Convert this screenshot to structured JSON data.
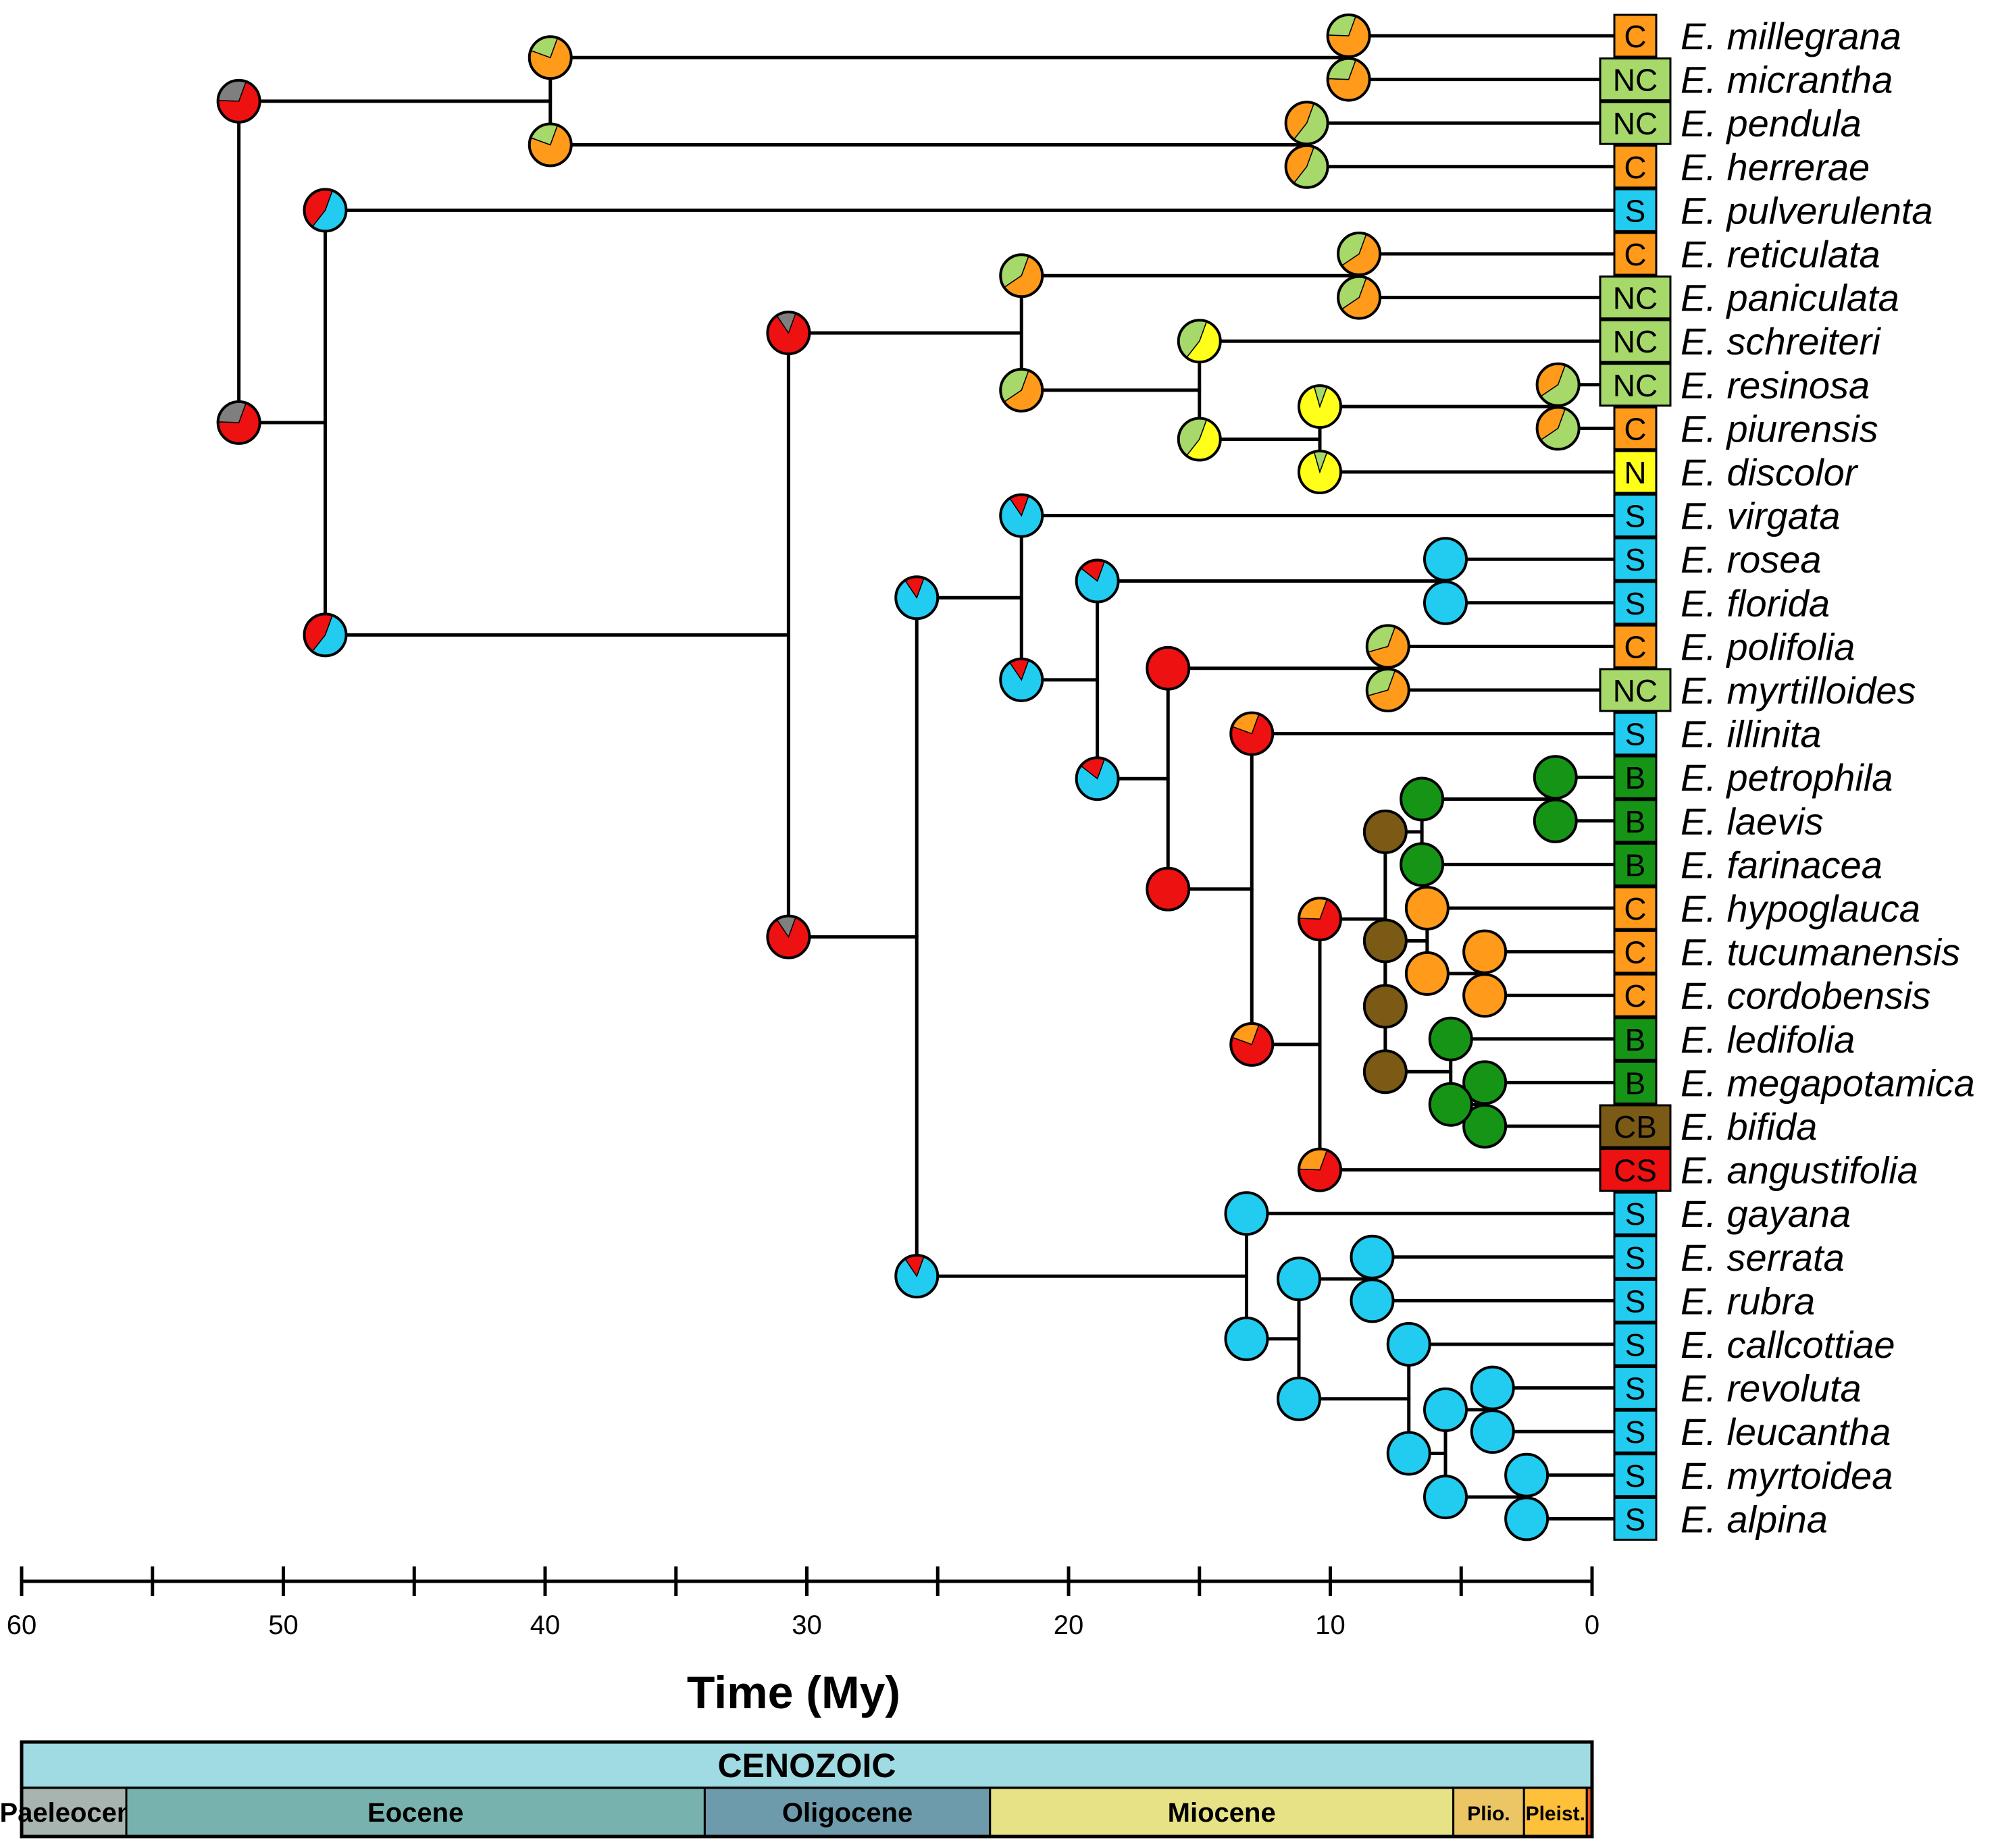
{
  "colors": {
    "S": "#22ccf0",
    "C": "#ff9a1a",
    "NC": "#a6d86a",
    "N": "#ffff1a",
    "B": "#169416",
    "CB": "#7a5a14",
    "CS": "#ee1111",
    "unknown": "#7f7f7f"
  },
  "species": [
    {
      "name": "E. millegrana",
      "state": "C"
    },
    {
      "name": "E. micrantha",
      "state": "NC"
    },
    {
      "name": "E. pendula",
      "state": "NC"
    },
    {
      "name": "E. herrerae",
      "state": "C"
    },
    {
      "name": "E. pulverulenta",
      "state": "S"
    },
    {
      "name": "E. reticulata",
      "state": "C"
    },
    {
      "name": "E. paniculata",
      "state": "NC"
    },
    {
      "name": "E. schreiteri",
      "state": "NC"
    },
    {
      "name": "E. resinosa",
      "state": "NC"
    },
    {
      "name": "E. piurensis",
      "state": "C"
    },
    {
      "name": "E. discolor",
      "state": "N"
    },
    {
      "name": "E. virgata",
      "state": "S"
    },
    {
      "name": "E. rosea",
      "state": "S"
    },
    {
      "name": "E. florida",
      "state": "S"
    },
    {
      "name": "E. polifolia",
      "state": "C"
    },
    {
      "name": "E. myrtilloides",
      "state": "NC"
    },
    {
      "name": "E. illinita",
      "state": "S"
    },
    {
      "name": "E. petrophila",
      "state": "B"
    },
    {
      "name": "E. laevis",
      "state": "B"
    },
    {
      "name": "E. farinacea",
      "state": "B"
    },
    {
      "name": "E. hypoglauca",
      "state": "C"
    },
    {
      "name": "E. tucumanensis",
      "state": "C"
    },
    {
      "name": "E. cordobensis",
      "state": "C"
    },
    {
      "name": "E. ledifolia",
      "state": "B"
    },
    {
      "name": "E. megapotamica",
      "state": "B"
    },
    {
      "name": "E. bifida",
      "state": "CB"
    },
    {
      "name": "E. angustifolia",
      "state": "CS"
    },
    {
      "name": "E. gayana",
      "state": "S"
    },
    {
      "name": "E. serrata",
      "state": "S"
    },
    {
      "name": "E. rubra",
      "state": "S"
    },
    {
      "name": "E. callcottiae",
      "state": "S"
    },
    {
      "name": "E. revoluta",
      "state": "S"
    },
    {
      "name": "E. leucantha",
      "state": "S"
    },
    {
      "name": "E. myrtoidea",
      "state": "S"
    },
    {
      "name": "E. alpina",
      "state": "S"
    }
  ],
  "nodes": [
    {
      "id": "n_mill_micr",
      "age": 9.3,
      "children": [
        0,
        1
      ],
      "pie": [
        [
          "C",
          0.7
        ],
        [
          "NC",
          0.3
        ]
      ]
    },
    {
      "id": "n_pend_herr",
      "age": 10.9,
      "children": [
        2,
        3
      ],
      "pie": [
        [
          "NC",
          0.55
        ],
        [
          "C",
          0.45
        ]
      ]
    },
    {
      "id": "n_4sp",
      "age": 39.8,
      "children": [
        "n_mill_micr",
        "n_pend_herr"
      ],
      "pie": [
        [
          "C",
          0.75
        ],
        [
          "NC",
          0.25
        ]
      ]
    },
    {
      "id": "n_ret_pan",
      "age": 8.9,
      "children": [
        5,
        6
      ],
      "pie": [
        [
          "C",
          0.6
        ],
        [
          "NC",
          0.4
        ]
      ]
    },
    {
      "id": "n_res_piu",
      "age": 1.3,
      "children": [
        8,
        9
      ],
      "pie": [
        [
          "NC",
          0.6
        ],
        [
          "C",
          0.4
        ]
      ]
    },
    {
      "id": "n_rpd",
      "age": 10.4,
      "children": [
        "n_res_piu",
        10
      ],
      "pie": [
        [
          "N",
          0.9
        ],
        [
          "NC",
          0.1
        ]
      ]
    },
    {
      "id": "n_srpd",
      "age": 15.0,
      "children": [
        7,
        "n_rpd"
      ],
      "pie": [
        [
          "N",
          0.55
        ],
        [
          "NC",
          0.45
        ]
      ]
    },
    {
      "id": "n_yellow",
      "age": 21.8,
      "children": [
        "n_ret_pan",
        "n_srpd"
      ],
      "pie": [
        [
          "C",
          0.6
        ],
        [
          "NC",
          0.4
        ]
      ]
    },
    {
      "id": "n_ros_flo",
      "age": 5.6,
      "children": [
        12,
        13
      ],
      "pie": [
        [
          "S",
          1.0
        ]
      ]
    },
    {
      "id": "n_pol_myr",
      "age": 7.8,
      "children": [
        14,
        15
      ],
      "pie": [
        [
          "C",
          0.65
        ],
        [
          "NC",
          0.35
        ]
      ]
    },
    {
      "id": "n_pet_lae",
      "age": 1.4,
      "children": [
        17,
        18
      ],
      "pie": [
        [
          "B",
          1.0
        ]
      ]
    },
    {
      "id": "n_plf",
      "age": 6.5,
      "children": [
        "n_pet_lae",
        19
      ],
      "pie": [
        [
          "B",
          1.0
        ]
      ]
    },
    {
      "id": "n_tuc_cor",
      "age": 4.1,
      "children": [
        21,
        22
      ],
      "pie": [
        [
          "C",
          1.0
        ]
      ]
    },
    {
      "id": "n_hyp_tc",
      "age": 6.3,
      "children": [
        20,
        "n_tuc_cor"
      ],
      "pie": [
        [
          "C",
          1.0
        ]
      ]
    },
    {
      "id": "n_meg_bif",
      "age": 4.1,
      "children": [
        24,
        25
      ],
      "pie": [
        [
          "B",
          1.0
        ]
      ]
    },
    {
      "id": "n_led_mb",
      "age": 5.4,
      "children": [
        23,
        "n_meg_bif"
      ],
      "pie": [
        [
          "B",
          1.0
        ]
      ]
    },
    {
      "id": "n_cb",
      "age": 7.9,
      "children": [
        "n_hyp_tc",
        "n_led_mb"
      ],
      "pie": [
        [
          "CB",
          1.0
        ]
      ]
    },
    {
      "id": "n_bc",
      "age": 7.9,
      "children": [
        "n_plf",
        "n_cb"
      ],
      "pie": [
        [
          "CB",
          1.0
        ]
      ]
    },
    {
      "id": "n_cbs",
      "age": 10.4,
      "children": [
        "n_bc",
        26
      ],
      "pie": [
        [
          "CS",
          0.7
        ],
        [
          "C",
          0.3
        ]
      ]
    },
    {
      "id": "n_ill_cbs",
      "age": 13.0,
      "children": [
        16,
        "n_cbs"
      ],
      "pie": [
        [
          "CS",
          0.75
        ],
        [
          "C",
          0.25
        ]
      ]
    },
    {
      "id": "n_polgrp",
      "age": 16.2,
      "children": [
        "n_pol_myr",
        "n_ill_cbs"
      ],
      "pie": [
        [
          "CS",
          1.0
        ]
      ]
    },
    {
      "id": "n_rfp",
      "age": 18.9,
      "children": [
        "n_ros_flo",
        "n_polgrp"
      ],
      "pie": [
        [
          "S",
          0.8
        ],
        [
          "CS",
          0.2
        ]
      ]
    },
    {
      "id": "n_vrfp",
      "age": 21.8,
      "children": [
        11,
        "n_rfp"
      ],
      "pie": [
        [
          "S",
          0.85
        ],
        [
          "CS",
          0.15
        ]
      ]
    },
    {
      "id": "n_rub_ser",
      "age": 8.4,
      "children": [
        28,
        29
      ],
      "pie": [
        [
          "S",
          1.0
        ]
      ]
    },
    {
      "id": "n_rev_leu",
      "age": 3.8,
      "children": [
        31,
        32
      ],
      "pie": [
        [
          "S",
          1.0
        ]
      ]
    },
    {
      "id": "n_myrt_alp",
      "age": 2.5,
      "children": [
        33,
        34
      ],
      "pie": [
        [
          "S",
          1.0
        ]
      ]
    },
    {
      "id": "n_4s",
      "age": 5.6,
      "children": [
        "n_rev_leu",
        "n_myrt_alp"
      ],
      "pie": [
        [
          "S",
          1.0
        ]
      ]
    },
    {
      "id": "n_c5s",
      "age": 7.0,
      "children": [
        30,
        "n_4s"
      ],
      "pie": [
        [
          "S",
          1.0
        ]
      ]
    },
    {
      "id": "n_7s",
      "age": 11.2,
      "children": [
        "n_rub_ser",
        "n_c5s"
      ],
      "pie": [
        [
          "S",
          1.0
        ]
      ]
    },
    {
      "id": "n_gay",
      "age": 13.2,
      "children": [
        27,
        "n_7s"
      ],
      "pie": [
        [
          "S",
          1.0
        ]
      ]
    },
    {
      "id": "n_redS",
      "age": 25.8,
      "children": [
        "n_vrfp",
        "n_gay"
      ],
      "pie": [
        [
          "S",
          0.85
        ],
        [
          "CS",
          0.15
        ]
      ]
    },
    {
      "id": "n_big",
      "age": 30.7,
      "children": [
        "n_yellow",
        "n_redS"
      ],
      "pie": [
        [
          "CS",
          0.85
        ],
        [
          "unknown",
          0.15
        ]
      ]
    },
    {
      "id": "n_puls",
      "age": 48.4,
      "children": [
        4,
        "n_big"
      ],
      "pie": [
        [
          "S",
          0.55
        ],
        [
          "CS",
          0.45
        ]
      ]
    },
    {
      "id": "n_root",
      "age": 51.7,
      "children": [
        "n_4sp",
        "n_puls"
      ],
      "pie": [
        [
          "CS",
          0.7
        ],
        [
          "unknown",
          0.3
        ]
      ]
    }
  ],
  "axis": {
    "title": "Time (My)",
    "min": 0,
    "max": 60,
    "labeled_ticks": [
      "60",
      "50",
      "40",
      "30",
      "20",
      "10",
      "0"
    ],
    "minor_ticks": [
      55,
      45,
      35,
      25,
      15,
      5
    ]
  },
  "timescale": {
    "era": "CENOZOIC",
    "era_color": "#a0dbe3",
    "epochs": [
      {
        "name": "Paeleocene",
        "start": 66,
        "end": 56,
        "color": "#a8b4b0"
      },
      {
        "name": "Eocene",
        "start": 56,
        "end": 33.9,
        "color": "#78b2ae"
      },
      {
        "name": "Oligocene",
        "start": 33.9,
        "end": 23,
        "color": "#6e9bab"
      },
      {
        "name": "Miocene",
        "start": 23,
        "end": 5.3,
        "color": "#e7e285"
      },
      {
        "name": "Plio.",
        "start": 5.3,
        "end": 2.6,
        "color": "#ecc665"
      },
      {
        "name": "Pleist.",
        "start": 2.6,
        "end": 0.2,
        "color": "#ffc03a"
      },
      {
        "name": "",
        "start": 0.2,
        "end": 0,
        "color": "#f25522"
      }
    ]
  }
}
